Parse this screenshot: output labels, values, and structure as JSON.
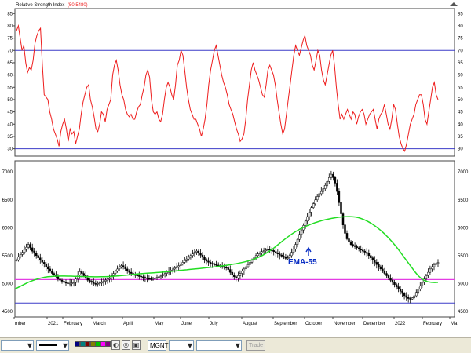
{
  "rsi_panel": {
    "title": "Relative Strength Index",
    "value": "(50.5480)",
    "y_ticks": [
      "85",
      "80",
      "75",
      "70",
      "65",
      "60",
      "55",
      "50",
      "45",
      "40",
      "35",
      "30"
    ],
    "upper_level": 70,
    "lower_level": 30,
    "line_color": "#ee1c1c",
    "level_color": "#3c3cc8"
  },
  "price_panel": {
    "y_ticks": [
      "7000",
      "6500",
      "6000",
      "5500",
      "5000",
      "4500"
    ],
    "annotation": "EMA-55",
    "annotation_color": "#0b2fc4",
    "ema_color": "#22dd22",
    "support_color": "#e43ce4",
    "support_level": 5070,
    "low_level": 4650
  },
  "x_axis": {
    "labels": [
      "mber",
      "2021",
      "February",
      "March",
      "April",
      "May",
      "June",
      "July",
      "August",
      "September",
      "October",
      "November",
      "December",
      "2022",
      "February",
      "Ma"
    ]
  },
  "toolbar": {
    "symbol": "MGNT",
    "trade_label": "Trade",
    "colors": [
      "#000080",
      "#008080",
      "#800000",
      "#808000",
      "#00c000",
      "#ff00ff",
      "#800080"
    ]
  },
  "chart_data": [
    {
      "type": "line",
      "title": "Relative Strength Index",
      "series": [
        {
          "name": "Relative Strength Index",
          "values": [
            78,
            80,
            75,
            70,
            72,
            65,
            61,
            63,
            62,
            66,
            73,
            76,
            78,
            79,
            64,
            52,
            51,
            50,
            45,
            42,
            38,
            36,
            34,
            31,
            37,
            40,
            42,
            38,
            33,
            38,
            36,
            37,
            32,
            35,
            38,
            44,
            49,
            52,
            55,
            56,
            50,
            47,
            43,
            38,
            37,
            40,
            45,
            44,
            41,
            46,
            48,
            50,
            60,
            64,
            66,
            62,
            56,
            52,
            50,
            46,
            44,
            43,
            44,
            42,
            42,
            45,
            47,
            48,
            52,
            55,
            60,
            62,
            59,
            50,
            45,
            44,
            45,
            42,
            41,
            44,
            50,
            55,
            57,
            55,
            52,
            50,
            56,
            64,
            66,
            70,
            68,
            62,
            55,
            50,
            46,
            44,
            42,
            42,
            40,
            38,
            35,
            38,
            42,
            48,
            56,
            62,
            66,
            70,
            72,
            68,
            64,
            60,
            57,
            55,
            52,
            48,
            46,
            44,
            41,
            38,
            36,
            33,
            34,
            36,
            42,
            50,
            56,
            62,
            65,
            62,
            60,
            58,
            55,
            52,
            51,
            56,
            62,
            64,
            62,
            60,
            56,
            50,
            45,
            40,
            36,
            38,
            44,
            50,
            56,
            62,
            68,
            72,
            70,
            68,
            71,
            74,
            76,
            72,
            70,
            68,
            64,
            62,
            66,
            70,
            68,
            62,
            58,
            56,
            60,
            64,
            68,
            70,
            64,
            55,
            48,
            42,
            44,
            42,
            44,
            46,
            44,
            42,
            45,
            44,
            40,
            43,
            45,
            46,
            44,
            40,
            42,
            44,
            45,
            46,
            42,
            38,
            42,
            44,
            45,
            48,
            44,
            40,
            38,
            42,
            48,
            46,
            40,
            35,
            32,
            30,
            29,
            32,
            36,
            40,
            42,
            44,
            48,
            50,
            52,
            52,
            48,
            42,
            40,
            45,
            50,
            55,
            57,
            52,
            50
          ]
        }
      ],
      "y_ticks": [
        85,
        80,
        75,
        70,
        65,
        60,
        55,
        50,
        45,
        40,
        35,
        30
      ],
      "ylim": [
        27,
        87
      ],
      "reference_lines": [
        70,
        30
      ],
      "current_value": 50.548
    },
    {
      "type": "line",
      "x_ticks": [
        "mber",
        "2021",
        "February",
        "March",
        "April",
        "May",
        "June",
        "July",
        "August",
        "September",
        "October",
        "November",
        "December",
        "2022",
        "February",
        "Ma"
      ],
      "y_ticks": [
        7000,
        6500,
        6000,
        5500,
        5000,
        4500
      ],
      "ylim": [
        4400,
        7200
      ],
      "series": [
        {
          "values": [
            5420,
            5480,
            5520,
            5560,
            5610,
            5650,
            5700,
            5640,
            5580,
            5540,
            5500,
            5460,
            5420,
            5380,
            5350,
            5300,
            5260,
            5220,
            5180,
            5150,
            5120,
            5080,
            5060,
            5040,
            5020,
            5010,
            5000,
            5005,
            5010,
            5020,
            5080,
            5150,
            5210,
            5180,
            5140,
            5100,
            5060,
            5040,
            5020,
            5000,
            4990,
            5000,
            5010,
            5020,
            5040,
            5060,
            5080,
            5100,
            5140,
            5180,
            5220,
            5260,
            5300,
            5320,
            5290,
            5260,
            5220,
            5200,
            5180,
            5160,
            5150,
            5140,
            5130,
            5120,
            5110,
            5100,
            5090,
            5085,
            5080,
            5090,
            5100,
            5110,
            5120,
            5140,
            5160,
            5180,
            5200,
            5220,
            5240,
            5260,
            5280,
            5300,
            5320,
            5350,
            5380,
            5410,
            5440,
            5470,
            5500,
            5530,
            5560,
            5580,
            5550,
            5510,
            5470,
            5430,
            5400,
            5380,
            5360,
            5350,
            5340,
            5330,
            5320,
            5310,
            5300,
            5290,
            5280,
            5250,
            5200,
            5150,
            5120,
            5100,
            5140,
            5180,
            5220,
            5260,
            5300,
            5340,
            5380,
            5420,
            5460,
            5500,
            5530,
            5550,
            5570,
            5590,
            5600,
            5610,
            5600,
            5590,
            5570,
            5550,
            5530,
            5510,
            5490,
            5470,
            5450,
            5460,
            5500,
            5560,
            5620,
            5700,
            5790,
            5880,
            5960,
            6040,
            6120,
            6200,
            6280,
            6360,
            6430,
            6500,
            6560,
            6610,
            6650,
            6700,
            6760,
            6830,
            6900,
            6960,
            6900,
            6800,
            6650,
            6450,
            6250,
            6050,
            5900,
            5800,
            5750,
            5700,
            5680,
            5660,
            5640,
            5620,
            5600,
            5580,
            5560,
            5540,
            5500,
            5460,
            5420,
            5380,
            5340,
            5300,
            5260,
            5220,
            5180,
            5140,
            5100,
            5060,
            5020,
            4980,
            4940,
            4900,
            4860,
            4820,
            4780,
            4750,
            4730,
            4720,
            4740,
            4780,
            4840,
            4900,
            4960,
            5020,
            5080,
            5140,
            5200,
            5260,
            5300,
            5340,
            5360,
            5380
          ]
        },
        {
          "name": "EMA-55",
          "values": [
            4900,
            4930,
            4960,
            4990,
            5020,
            5045,
            5065,
            5085,
            5100,
            5112,
            5120,
            5125,
            5130,
            5132,
            5133,
            5133,
            5132,
            5131,
            5129,
            5127,
            5125,
            5123,
            5121,
            5120,
            5119,
            5119,
            5120,
            5121,
            5123,
            5126,
            5130,
            5135,
            5140,
            5146,
            5152,
            5158,
            5164,
            5170,
            5175,
            5180,
            5184,
            5188,
            5192,
            5196,
            5200,
            5205,
            5210,
            5216,
            5222,
            5228,
            5234,
            5240,
            5246,
            5252,
            5258,
            5264,
            5270,
            5276,
            5282,
            5288,
            5295,
            5302,
            5310,
            5318,
            5326,
            5335,
            5345,
            5356,
            5368,
            5381,
            5395,
            5411,
            5430,
            5452,
            5478,
            5508,
            5542,
            5580,
            5622,
            5668,
            5716,
            5764,
            5810,
            5854,
            5896,
            5934,
            5968,
            5998,
            6025,
            6050,
            6073,
            6094,
            6113,
            6130,
            6145,
            6158,
            6170,
            6180,
            6188,
            6194,
            6198,
            6200,
            6198,
            6192,
            6180,
            6160,
            6135,
            6105,
            6070,
            6030,
            5985,
            5935,
            5880,
            5820,
            5755,
            5685,
            5610,
            5530,
            5450,
            5370,
            5290,
            5210,
            5140,
            5085,
            5050,
            5030,
            5020,
            5018,
            5020
          ]
        }
      ],
      "reference_lines": [
        5070,
        4650
      ],
      "annotation": "EMA-55"
    }
  ]
}
